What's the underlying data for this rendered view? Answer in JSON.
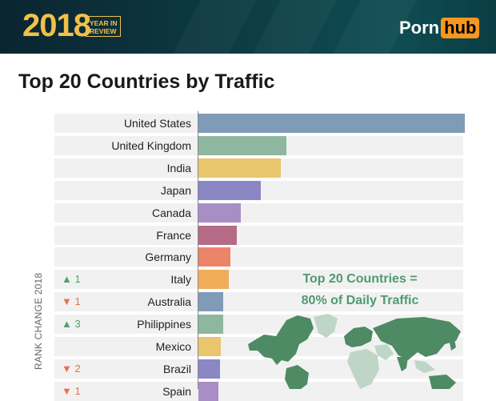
{
  "header": {
    "year": "2018",
    "year_in_review": [
      "YEAR IN",
      "REVIEW"
    ],
    "logo_text": "Porn",
    "logo_badge": "hub"
  },
  "chart_data": {
    "type": "bar",
    "orientation": "horizontal",
    "title": "Top 20 Countries by Traffic",
    "ylabel": "RANK CHANGE 2018",
    "categories": [
      "United States",
      "United Kingdom",
      "India",
      "Japan",
      "Canada",
      "France",
      "Germany",
      "Italy",
      "Australia",
      "Philippines",
      "Mexico",
      "Brazil",
      "Spain"
    ],
    "values": [
      100,
      33,
      31,
      23.5,
      16,
      14.5,
      12,
      11.5,
      9.3,
      9.3,
      8.5,
      8,
      7.5
    ],
    "xlim": [
      0,
      100
    ],
    "bar_colors": [
      "#7f9bb8",
      "#8fb69e",
      "#e9c56c",
      "#8b86c4",
      "#a98ec6",
      "#b56b86",
      "#ec8469",
      "#f1ac59",
      "#7f9bb8",
      "#8fb69e",
      "#e9c56c",
      "#8b86c4",
      "#a98ec6"
    ],
    "rank_change": [
      {
        "category": "Italy",
        "direction": "up",
        "value": "1"
      },
      {
        "category": "Australia",
        "direction": "down",
        "value": "1"
      },
      {
        "category": "Philippines",
        "direction": "up",
        "value": "3"
      },
      {
        "category": "Brazil",
        "direction": "down",
        "value": "2"
      },
      {
        "category": "Spain",
        "direction": "down",
        "value": "1"
      }
    ],
    "annotation": [
      "Top 20 Countries =",
      "80% of Daily Traffic"
    ],
    "grid": false
  },
  "colors": {
    "up": "#4fa36a",
    "down": "#e8714a",
    "map_green": "#4e8a64",
    "map_light": "#bfd6c6",
    "accent": "#f2c04a"
  },
  "icons": {
    "up": "▲",
    "down": "▼"
  }
}
